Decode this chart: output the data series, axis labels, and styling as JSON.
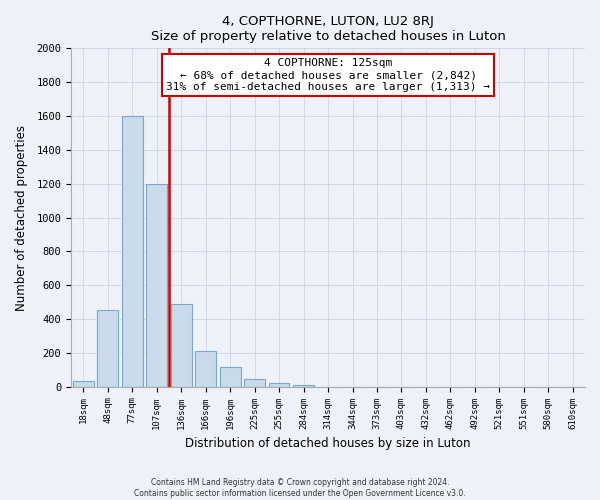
{
  "title": "4, COPTHORNE, LUTON, LU2 8RJ",
  "subtitle": "Size of property relative to detached houses in Luton",
  "xlabel": "Distribution of detached houses by size in Luton",
  "ylabel": "Number of detached properties",
  "bar_labels": [
    "18sqm",
    "48sqm",
    "77sqm",
    "107sqm",
    "136sqm",
    "166sqm",
    "196sqm",
    "225sqm",
    "255sqm",
    "284sqm",
    "314sqm",
    "344sqm",
    "373sqm",
    "403sqm",
    "432sqm",
    "462sqm",
    "492sqm",
    "521sqm",
    "551sqm",
    "580sqm",
    "610sqm"
  ],
  "bar_values": [
    35,
    455,
    1600,
    1200,
    490,
    210,
    115,
    45,
    20,
    10,
    0,
    0,
    0,
    0,
    0,
    0,
    0,
    0,
    0,
    0,
    0
  ],
  "bar_color": "#c9daea",
  "bar_edge_color": "#7ba7c9",
  "property_line_color": "#cc0000",
  "annotation_text": "4 COPTHORNE: 125sqm\n← 68% of detached houses are smaller (2,842)\n31% of semi-detached houses are larger (1,313) →",
  "annotation_box_color": "#ffffff",
  "annotation_box_edge": "#cc0000",
  "ylim": [
    0,
    2000
  ],
  "yticks": [
    0,
    200,
    400,
    600,
    800,
    1000,
    1200,
    1400,
    1600,
    1800,
    2000
  ],
  "grid_color": "#d0d8e8",
  "background_color": "#eef2f8",
  "footer_line1": "Contains HM Land Registry data © Crown copyright and database right 2024.",
  "footer_line2": "Contains public sector information licensed under the Open Government Licence v3.0."
}
